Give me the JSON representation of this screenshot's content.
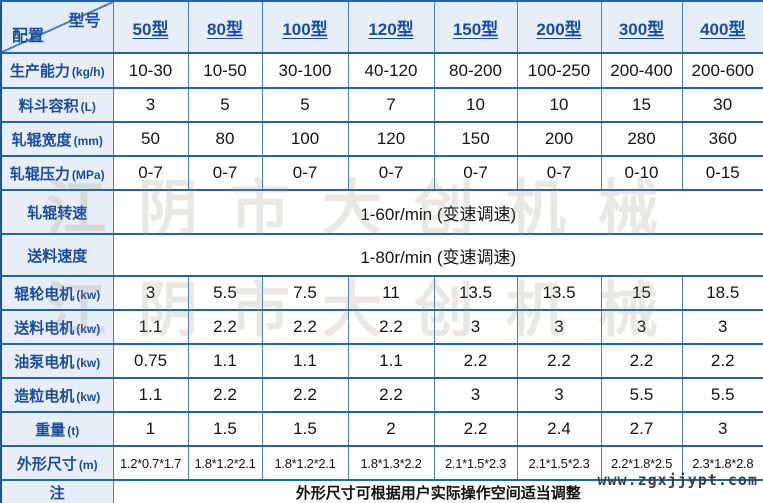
{
  "table": {
    "corner": {
      "top_right": "型号",
      "bottom_left": "配置"
    },
    "columns": [
      "50型",
      "80型",
      "100型",
      "120型",
      "150型",
      "200型",
      "300型",
      "400型"
    ],
    "rows": [
      {
        "label": "生产能力",
        "unit": "(kg/h)",
        "values": [
          "10-30",
          "10-50",
          "30-100",
          "40-120",
          "80-200",
          "100-250",
          "200-400",
          "200-600"
        ]
      },
      {
        "label": "料斗容积",
        "unit": "(L)",
        "values": [
          "3",
          "5",
          "5",
          "7",
          "10",
          "10",
          "15",
          "30"
        ]
      },
      {
        "label": "轧辊宽度",
        "unit": "(mm)",
        "values": [
          "50",
          "80",
          "100",
          "120",
          "150",
          "200",
          "280",
          "360"
        ]
      },
      {
        "label": "轧辊压力",
        "unit": "(MPa)",
        "values": [
          "0-7",
          "0-7",
          "0-7",
          "0-7",
          "0-7",
          "0-7",
          "0-10",
          "0-15"
        ]
      },
      {
        "label": "轧辊转速",
        "unit": "",
        "span": "1-60r/min (变速调速)"
      },
      {
        "label": "送料速度",
        "unit": "",
        "span": "1-80r/min (变速调速)"
      },
      {
        "label": "辊轮电机",
        "unit": "(kw)",
        "values": [
          "3",
          "5.5",
          "7.5",
          "11",
          "13.5",
          "13.5",
          "15",
          "18.5"
        ]
      },
      {
        "label": "送料电机",
        "unit": "(kw)",
        "values": [
          "1.1",
          "2.2",
          "2.2",
          "2.2",
          "3",
          "3",
          "3",
          "3"
        ]
      },
      {
        "label": "油泵电机",
        "unit": "(kw)",
        "values": [
          "0.75",
          "1.1",
          "1.1",
          "1.1",
          "2.2",
          "2.2",
          "2.2",
          "2.2"
        ]
      },
      {
        "label": "造粒电机",
        "unit": "(kw)",
        "values": [
          "1.1",
          "2.2",
          "2.2",
          "2.2",
          "3",
          "3",
          "5.5",
          "5.5"
        ]
      },
      {
        "label": "重量",
        "unit": "(t)",
        "values": [
          "1",
          "1.5",
          "1.5",
          "2",
          "2.2",
          "2.4",
          "2.7",
          "3"
        ]
      },
      {
        "label": "外形尺寸",
        "unit": "(m)",
        "values": [
          "1.2*0.7*1.7",
          "1.8*1.2*2.1",
          "1.8*1.2*2.1",
          "1.8*1.3*2.2",
          "2.1*1.5*2.3",
          "2.1*1.5*2.3",
          "2.2*1.8*2.5",
          "2.3*1.8*2.8"
        ]
      }
    ],
    "note": {
      "label": "注",
      "text": "外形尺寸可根据用户实际操作空间适当调整"
    }
  },
  "watermark": {
    "lines": [
      "江阴市大创机械",
      "江阴市大创机械"
    ],
    "url": "www.zgxjjypt.com"
  },
  "colors": {
    "border_horizontal": "#2264a5",
    "border_vertical": "#4a80bd",
    "header_bg": "#e8eef8",
    "header_text": "#1b4c9b",
    "cell_text": "#141414",
    "watermark": "#e9e6df"
  }
}
